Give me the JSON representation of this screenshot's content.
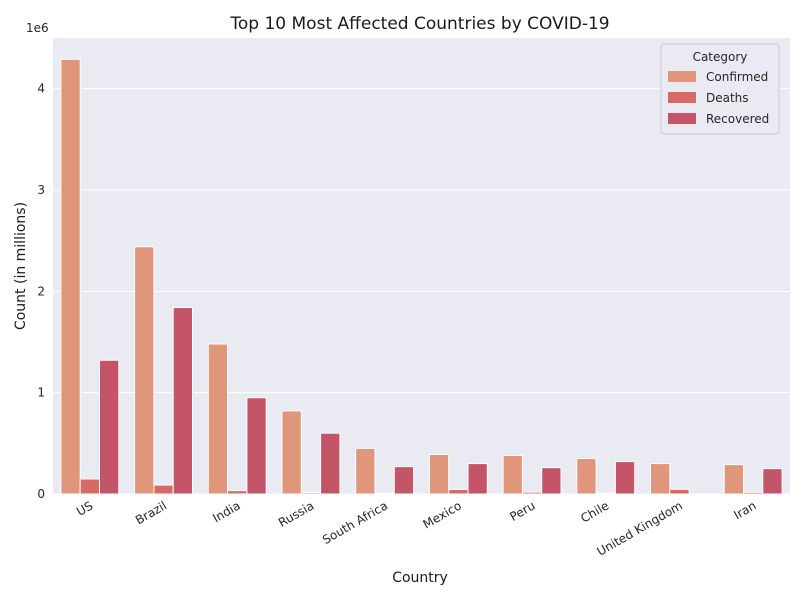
{
  "chart_data": {
    "type": "bar",
    "title": "Top 10 Most Affected Countries by COVID-19",
    "xlabel": "Country",
    "ylabel": "Count (in millions)",
    "y_offset_label": "1e6",
    "ylim": [
      0,
      4.5
    ],
    "yticks": [
      0,
      1,
      2,
      3,
      4
    ],
    "grid": true,
    "legend_position": "top-right",
    "legend_title": "Category",
    "categories": [
      "US",
      "Brazil",
      "India",
      "Russia",
      "South Africa",
      "Mexico",
      "Peru",
      "Chile",
      "United Kingdom",
      "Iran"
    ],
    "series": [
      {
        "name": "Confirmed",
        "color": "#e0967a",
        "values": [
          4.29,
          2.44,
          1.48,
          0.82,
          0.45,
          0.39,
          0.38,
          0.35,
          0.3,
          0.29
        ]
      },
      {
        "name": "Deaths",
        "color": "#d86a64",
        "values": [
          0.148,
          0.088,
          0.033,
          0.013,
          0.007,
          0.045,
          0.018,
          0.009,
          0.046,
          0.016
        ]
      },
      {
        "name": "Recovered",
        "color": "#c45468",
        "values": [
          1.32,
          1.84,
          0.95,
          0.6,
          0.27,
          0.3,
          0.26,
          0.32,
          0.0,
          0.25
        ]
      }
    ]
  }
}
